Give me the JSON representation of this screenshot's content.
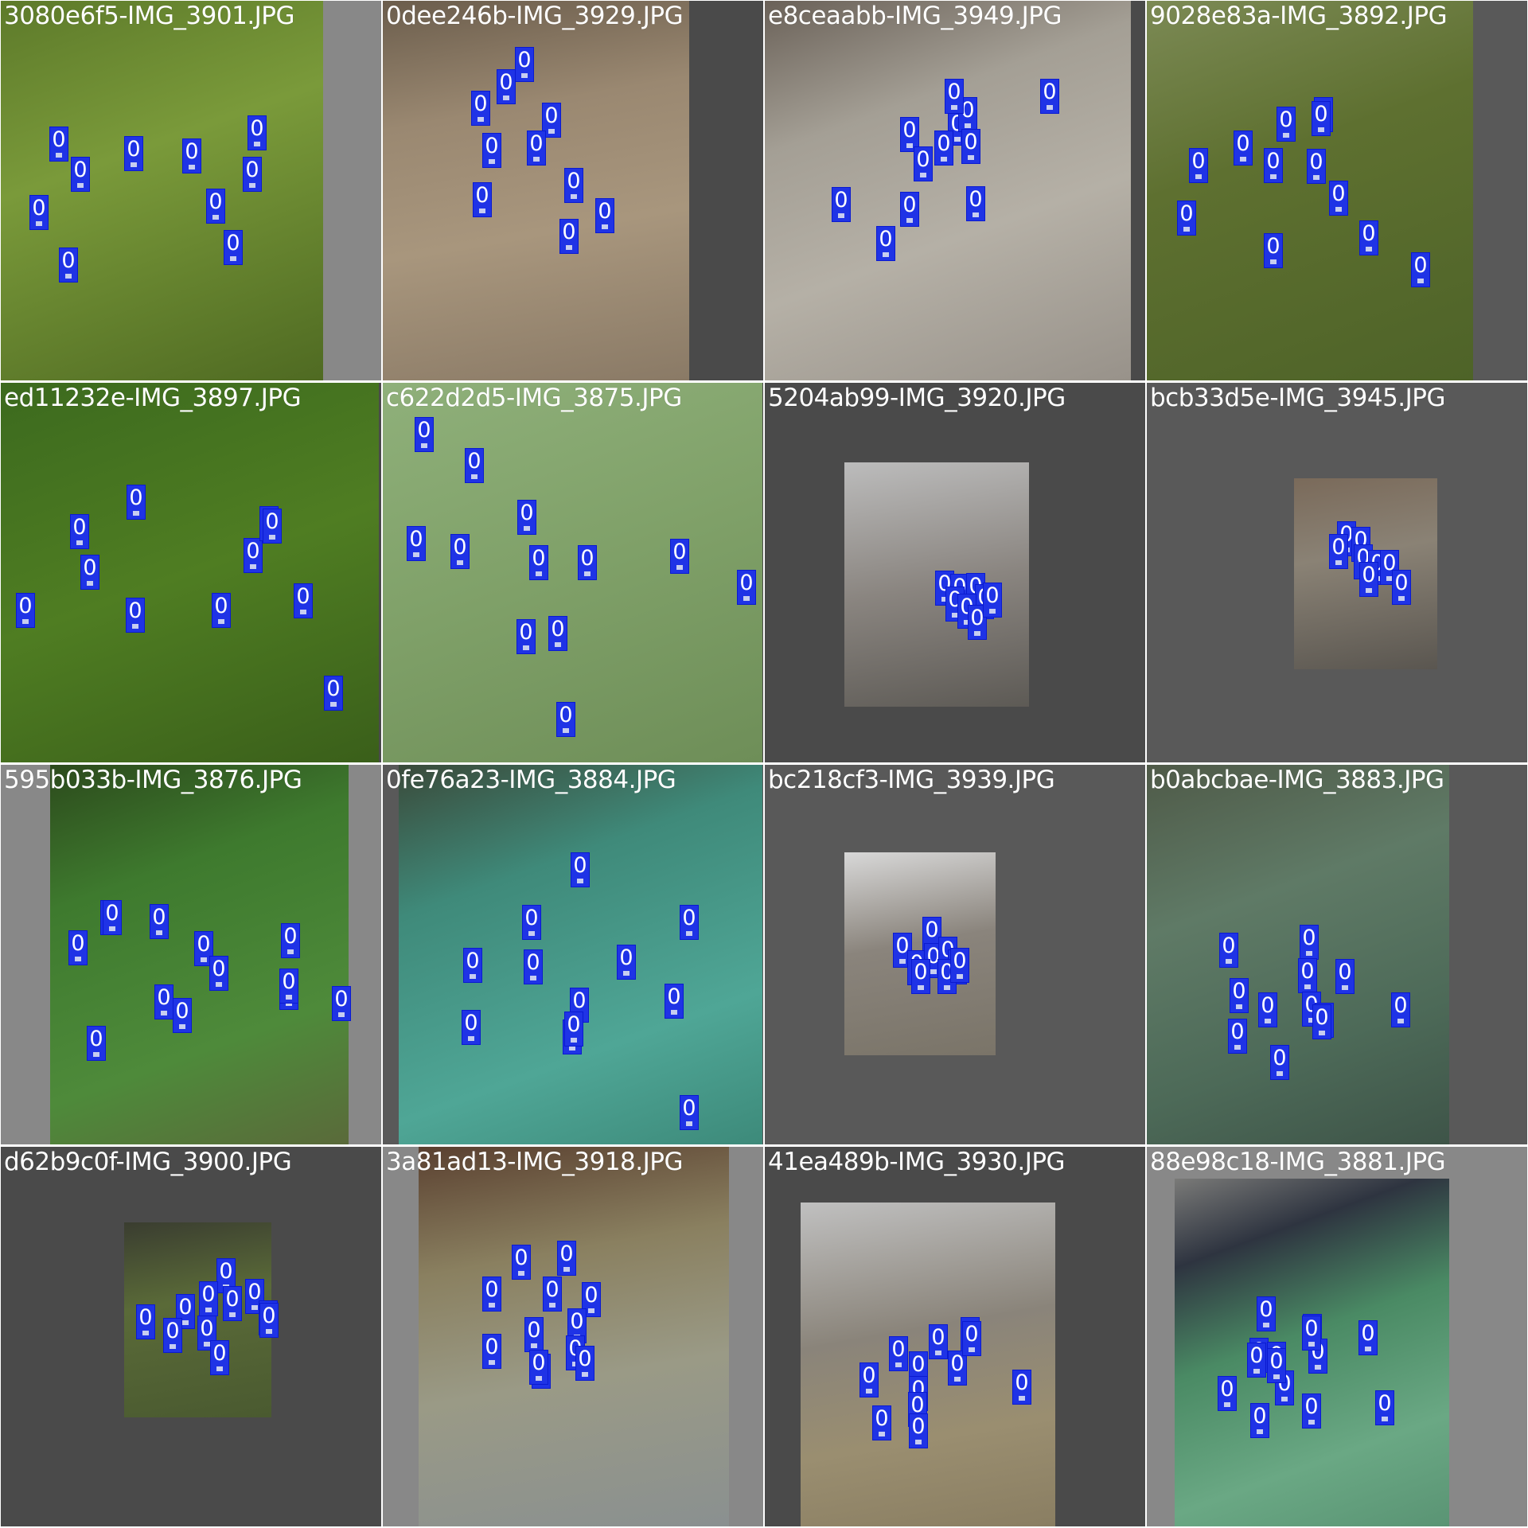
{
  "colors": {
    "box": "#1f33e6",
    "box_text": "#ffffff",
    "pad_dark": "#4a4a4a",
    "pad_mid": "#595959",
    "pad_light": "#888888",
    "filename_text": "#ffffff"
  },
  "tiles": [
    {
      "filename": "3080e6f5-IMG_3901.JPG",
      "labels": [
        "0",
        "0",
        "0",
        "0",
        "0",
        "0",
        "0",
        "0",
        "0",
        "0",
        "0"
      ]
    },
    {
      "filename": "0dee246b-IMG_3929.JPG",
      "labels": [
        "0",
        "0",
        "0",
        "0",
        "0",
        "0",
        "0",
        "0",
        "0",
        "0",
        "0"
      ]
    },
    {
      "filename": "e8ceaabb-IMG_3949.JPG",
      "labels": [
        "0",
        "0",
        "0",
        "0",
        "0",
        "0",
        "0",
        "0",
        "0",
        "0",
        "0",
        "0"
      ]
    },
    {
      "filename": "9028e83a-IMG_3892.JPG",
      "labels": [
        "0",
        "0",
        "0",
        "0",
        "0",
        "0",
        "0",
        "0",
        "0",
        "0",
        "0",
        "0"
      ]
    },
    {
      "filename": "ed11232e-IMG_3897.JPG",
      "labels": [
        "0",
        "0",
        "0",
        "0",
        "0",
        "0",
        "0",
        "0",
        "0",
        "0",
        "0"
      ]
    },
    {
      "filename": "c622d2d5-IMG_3875.JPG",
      "labels": [
        "0",
        "0",
        "0",
        "0",
        "0",
        "0",
        "0",
        "0",
        "0",
        "0",
        "0",
        "0"
      ]
    },
    {
      "filename": "5204ab99-IMG_3920.JPG",
      "labels": [
        "0",
        "0",
        "0",
        "0",
        "0",
        "0",
        "0",
        "0"
      ]
    },
    {
      "filename": "bcb33d5e-IMG_3945.JPG",
      "labels": [
        "0",
        "0",
        "0",
        "0",
        "0",
        "0",
        "0",
        "0"
      ]
    },
    {
      "filename": "595b033b-IMG_3876.JPG",
      "labels": [
        "0",
        "0",
        "0",
        "0",
        "0",
        "0",
        "0",
        "0",
        "0",
        "0",
        "0",
        "0",
        "0"
      ]
    },
    {
      "filename": "0fe76a23-IMG_3884.JPG",
      "labels": [
        "0",
        "0",
        "0",
        "0",
        "0",
        "0",
        "0",
        "0",
        "0",
        "0",
        "0",
        "0"
      ]
    },
    {
      "filename": "bc218cf3-IMG_3939.JPG",
      "labels": [
        "0",
        "0",
        "0",
        "0",
        "0",
        "0",
        "0",
        "0",
        "0"
      ]
    },
    {
      "filename": "b0abcbae-IMG_3883.JPG",
      "labels": [
        "0",
        "0",
        "0",
        "0",
        "0",
        "0",
        "0",
        "0",
        "0",
        "0",
        "0",
        "0"
      ]
    },
    {
      "filename": "d62b9c0f-IMG_3900.JPG",
      "labels": [
        "0",
        "0",
        "0",
        "0",
        "0",
        "0",
        "0",
        "0",
        "0",
        "0",
        "0"
      ]
    },
    {
      "filename": "3a81ad13-IMG_3918.JPG",
      "labels": [
        "0",
        "0",
        "0",
        "0",
        "0",
        "0",
        "0",
        "0",
        "0",
        "0",
        "0",
        "0"
      ]
    },
    {
      "filename": "41ea489b-IMG_3930.JPG",
      "labels": [
        "0",
        "0",
        "0",
        "0",
        "0",
        "0",
        "0",
        "0",
        "0",
        "0",
        "0",
        "0"
      ]
    },
    {
      "filename": "88e98c18-IMG_3881.JPG",
      "labels": [
        "0",
        "0",
        "0",
        "0",
        "0",
        "0",
        "0",
        "0",
        "0",
        "0",
        "0",
        "0",
        "0",
        "0"
      ]
    }
  ]
}
